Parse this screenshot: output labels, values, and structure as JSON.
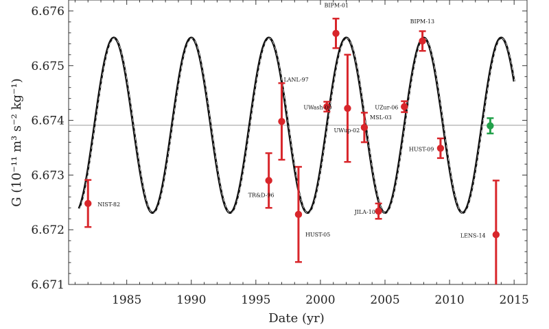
{
  "chart_data": {
    "type": "scatter",
    "xlabel": "Date (yr)",
    "ylabel": "G (10⁻¹¹ m³ s⁻² kg⁻¹)",
    "xlim": [
      1980.5,
      2016
    ],
    "ylim": [
      6.671,
      6.6762
    ],
    "x_ticks": [
      1985,
      1990,
      1995,
      2000,
      2005,
      2010,
      2015
    ],
    "y_ticks": [
      6.671,
      6.672,
      6.673,
      6.674,
      6.675,
      6.676
    ],
    "y_tick_labels": [
      "6.671",
      "6.672",
      "6.673",
      "6.674",
      "6.675",
      "6.676"
    ],
    "grid": false,
    "reference_line": {
      "y": 6.67391,
      "color": "#9a9a9a"
    },
    "fit_curve": {
      "description": "sinusoidal fit",
      "mean": 6.67391,
      "amplitude": 0.0016,
      "period_years": 6.0,
      "peak_year": 1984.0,
      "x_range": [
        1981.3,
        2015.0
      ],
      "color": "#111111",
      "dashed_overlay": true
    },
    "points": [
      {
        "label": "NIST-82",
        "x": 1982.0,
        "y": 6.67248,
        "err": 0.00043,
        "color": "#d8262b"
      },
      {
        "label": "TR&D-96",
        "x": 1996.0,
        "y": 6.6729,
        "err": 0.0005,
        "color": "#d8262b"
      },
      {
        "label": "LANL-97",
        "x": 1997.0,
        "y": 6.67398,
        "err": 0.0007,
        "color": "#d8262b"
      },
      {
        "label": "HUST-05",
        "x": 1998.3,
        "y": 6.67228,
        "err": 0.00087,
        "color": "#d8262b"
      },
      {
        "label": "UWash-00",
        "x": 2000.5,
        "y": 6.67425,
        "err": 9e-05,
        "color": "#d8262b"
      },
      {
        "label": "BIPM-01",
        "x": 2001.2,
        "y": 6.67559,
        "err": 0.00027,
        "color": "#d8262b"
      },
      {
        "label": "UWup-02",
        "x": 2002.1,
        "y": 6.67422,
        "err": 0.00098,
        "color": "#d8262b"
      },
      {
        "label": "MSL-03",
        "x": 2003.4,
        "y": 6.67387,
        "err": 0.00027,
        "color": "#d8262b"
      },
      {
        "label": "JILA-10",
        "x": 2004.5,
        "y": 6.67234,
        "err": 0.00014,
        "color": "#d8262b"
      },
      {
        "label": "UZur-06",
        "x": 2006.5,
        "y": 6.67425,
        "err": 0.0001,
        "color": "#d8262b"
      },
      {
        "label": "BIPM-13",
        "x": 2007.9,
        "y": 6.67545,
        "err": 0.00018,
        "color": "#d8262b"
      },
      {
        "label": "HUST-09",
        "x": 2009.3,
        "y": 6.67349,
        "err": 0.00018,
        "color": "#d8262b"
      },
      {
        "label": "LENS-14",
        "x": 2013.6,
        "y": 6.67191,
        "err": 0.00099,
        "color": "#d8262b"
      },
      {
        "label": "",
        "x": 2013.15,
        "y": 6.6739,
        "err": 0.00014,
        "color": "#22a04a"
      }
    ]
  }
}
